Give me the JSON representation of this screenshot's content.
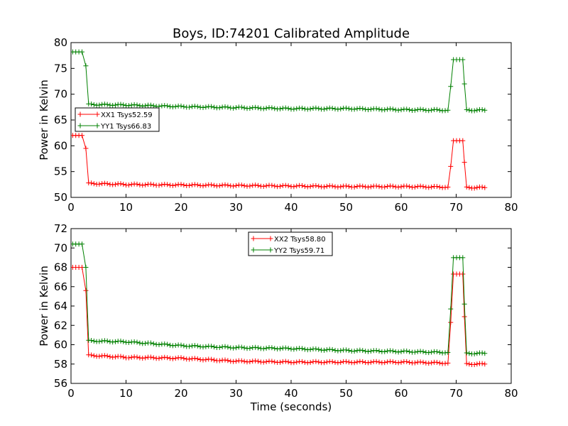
{
  "figure": {
    "title": "Boys, ID:74201 Calibrated Amplitude"
  },
  "chart_data": [
    {
      "type": "line",
      "title": "Boys, ID:74201 Calibrated Amplitude",
      "xlabel": "",
      "ylabel": "Power in Kelvin",
      "xlim": [
        0,
        80
      ],
      "ylim": [
        50,
        80
      ],
      "xticks": [
        0,
        10,
        20,
        30,
        40,
        50,
        60,
        70,
        80
      ],
      "yticks": [
        50,
        55,
        60,
        65,
        70,
        75,
        80
      ],
      "grid": false,
      "legend_position": "center-left",
      "marker": "+",
      "series": [
        {
          "name": "XX1 Tsys52.59",
          "color": "#ff0000",
          "points": [
            [
              0.3,
              62.0
            ],
            [
              2.0,
              62.0
            ],
            [
              2.7,
              59.5
            ],
            [
              3.2,
              52.7
            ],
            [
              10,
              52.5
            ],
            [
              20,
              52.4
            ],
            [
              30,
              52.3
            ],
            [
              40,
              52.2
            ],
            [
              50,
              52.1
            ],
            [
              60,
              52.1
            ],
            [
              68.5,
              52.0
            ],
            [
              69.0,
              56.0
            ],
            [
              69.5,
              61.0
            ],
            [
              71.2,
              61.0
            ],
            [
              71.5,
              56.8
            ],
            [
              71.9,
              51.9
            ],
            [
              75.2,
              51.9
            ]
          ]
        },
        {
          "name": "YY1 Tsys66.83",
          "color": "#008000",
          "points": [
            [
              0.3,
              78.2
            ],
            [
              2.0,
              78.2
            ],
            [
              2.7,
              75.5
            ],
            [
              3.2,
              68.0
            ],
            [
              10,
              67.9
            ],
            [
              20,
              67.6
            ],
            [
              30,
              67.4
            ],
            [
              40,
              67.2
            ],
            [
              50,
              67.2
            ],
            [
              60,
              67.0
            ],
            [
              68.5,
              66.9
            ],
            [
              69.0,
              71.5
            ],
            [
              69.5,
              76.7
            ],
            [
              71.2,
              76.7
            ],
            [
              71.5,
              72.0
            ],
            [
              71.9,
              66.9
            ],
            [
              75.2,
              66.9
            ]
          ]
        }
      ]
    },
    {
      "type": "line",
      "title": "",
      "xlabel": "Time (seconds)",
      "ylabel": "Power in Kelvin",
      "xlim": [
        0,
        80
      ],
      "ylim": [
        56,
        72
      ],
      "xticks": [
        0,
        10,
        20,
        30,
        40,
        50,
        60,
        70,
        80
      ],
      "yticks": [
        56,
        58,
        60,
        62,
        64,
        66,
        68,
        70,
        72
      ],
      "grid": false,
      "legend_position": "top-center",
      "marker": "+",
      "series": [
        {
          "name": "XX2 Tsys58.80",
          "color": "#ff0000",
          "points": [
            [
              0.3,
              68.0
            ],
            [
              2.0,
              68.0
            ],
            [
              2.7,
              65.6
            ],
            [
              3.2,
              58.9
            ],
            [
              10,
              58.7
            ],
            [
              20,
              58.6
            ],
            [
              30,
              58.3
            ],
            [
              40,
              58.2
            ],
            [
              50,
              58.2
            ],
            [
              60,
              58.2
            ],
            [
              68.5,
              58.1
            ],
            [
              69.0,
              62.3
            ],
            [
              69.5,
              67.3
            ],
            [
              71.2,
              67.3
            ],
            [
              71.5,
              62.9
            ],
            [
              71.9,
              58.0
            ],
            [
              75.2,
              58.0
            ]
          ]
        },
        {
          "name": "YY2 Tsys59.71",
          "color": "#008000",
          "points": [
            [
              0.3,
              70.4
            ],
            [
              2.0,
              70.4
            ],
            [
              2.7,
              68.0
            ],
            [
              3.2,
              60.4
            ],
            [
              10,
              60.3
            ],
            [
              20,
              59.9
            ],
            [
              30,
              59.7
            ],
            [
              40,
              59.6
            ],
            [
              50,
              59.4
            ],
            [
              60,
              59.3
            ],
            [
              68.5,
              59.2
            ],
            [
              69.0,
              63.7
            ],
            [
              69.5,
              69.0
            ],
            [
              71.2,
              69.0
            ],
            [
              71.5,
              64.2
            ],
            [
              71.9,
              59.1
            ],
            [
              75.2,
              59.1
            ]
          ]
        }
      ]
    }
  ]
}
